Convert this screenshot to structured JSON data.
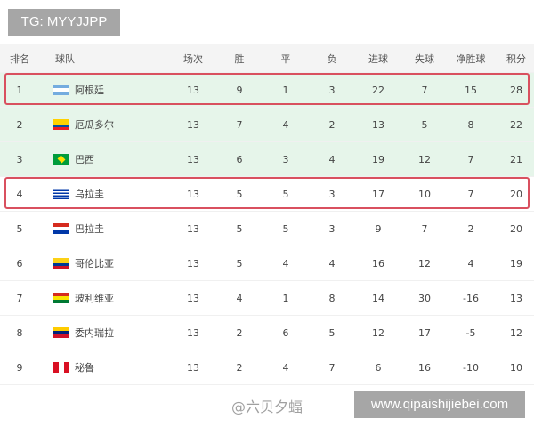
{
  "watermark_top": "TG: MYYJJPP",
  "watermark_site": "www.qipaishijiebei.com",
  "watermark_author": "@六贝夕蝠",
  "headers": [
    "排名",
    "球队",
    "场次",
    "胜",
    "平",
    "负",
    "进球",
    "失球",
    "净胜球",
    "积分"
  ],
  "highlight_color": "#d9505f",
  "rows": [
    {
      "rank": "1",
      "team": "阿根廷",
      "flag": "argentina",
      "played": "13",
      "w": "9",
      "d": "1",
      "l": "3",
      "gf": "22",
      "ga": "7",
      "gd": "15",
      "pts": "28"
    },
    {
      "rank": "2",
      "team": "厄瓜多尔",
      "flag": "ecuador",
      "played": "13",
      "w": "7",
      "d": "4",
      "l": "2",
      "gf": "13",
      "ga": "5",
      "gd": "8",
      "pts": "22"
    },
    {
      "rank": "3",
      "team": "巴西",
      "flag": "brazil",
      "played": "13",
      "w": "6",
      "d": "3",
      "l": "4",
      "gf": "19",
      "ga": "12",
      "gd": "7",
      "pts": "21"
    },
    {
      "rank": "4",
      "team": "乌拉圭",
      "flag": "uruguay",
      "played": "13",
      "w": "5",
      "d": "5",
      "l": "3",
      "gf": "17",
      "ga": "10",
      "gd": "7",
      "pts": "20"
    },
    {
      "rank": "5",
      "team": "巴拉圭",
      "flag": "paraguay",
      "played": "13",
      "w": "5",
      "d": "5",
      "l": "3",
      "gf": "9",
      "ga": "7",
      "gd": "2",
      "pts": "20"
    },
    {
      "rank": "6",
      "team": "哥伦比亚",
      "flag": "colombia",
      "played": "13",
      "w": "5",
      "d": "4",
      "l": "4",
      "gf": "16",
      "ga": "12",
      "gd": "4",
      "pts": "19"
    },
    {
      "rank": "7",
      "team": "玻利维亚",
      "flag": "bolivia",
      "played": "13",
      "w": "4",
      "d": "1",
      "l": "8",
      "gf": "14",
      "ga": "30",
      "gd": "-16",
      "pts": "13"
    },
    {
      "rank": "8",
      "team": "委内瑞拉",
      "flag": "venezuela",
      "played": "13",
      "w": "2",
      "d": "6",
      "l": "5",
      "gf": "12",
      "ga": "17",
      "gd": "-5",
      "pts": "12"
    },
    {
      "rank": "9",
      "team": "秘鲁",
      "flag": "peru",
      "played": "13",
      "w": "2",
      "d": "4",
      "l": "7",
      "gf": "6",
      "ga": "16",
      "gd": "-10",
      "pts": "10"
    }
  ]
}
